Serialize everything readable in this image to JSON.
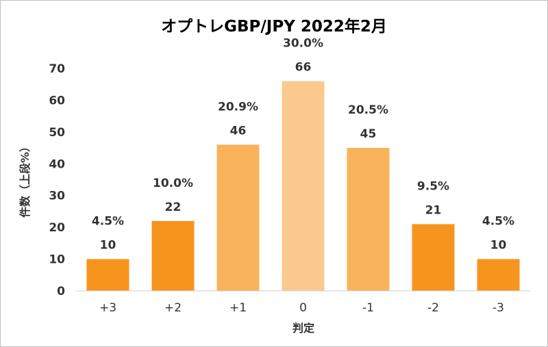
{
  "chart_data": {
    "type": "bar",
    "title": "オプトレGBP/JPY 2022年2月",
    "xlabel": "判定",
    "ylabel": "件数（上段%）",
    "ylim": [
      0,
      70
    ],
    "yticks": [
      0,
      10,
      20,
      30,
      40,
      50,
      60,
      70
    ],
    "categories": [
      "+3",
      "+2",
      "+1",
      "0",
      "-1",
      "-2",
      "-3"
    ],
    "values": [
      10,
      22,
      46,
      66,
      45,
      21,
      10
    ],
    "percent_labels": [
      "4.5%",
      "10.0%",
      "20.9%",
      "30.0%",
      "20.5%",
      "9.5%",
      "4.5%"
    ],
    "bar_colors": [
      "#f7941d",
      "#f7941d",
      "#f9b35b",
      "#fbc98e",
      "#f9b35b",
      "#f7941d",
      "#f7941d"
    ],
    "grid": false,
    "legend": "none"
  }
}
